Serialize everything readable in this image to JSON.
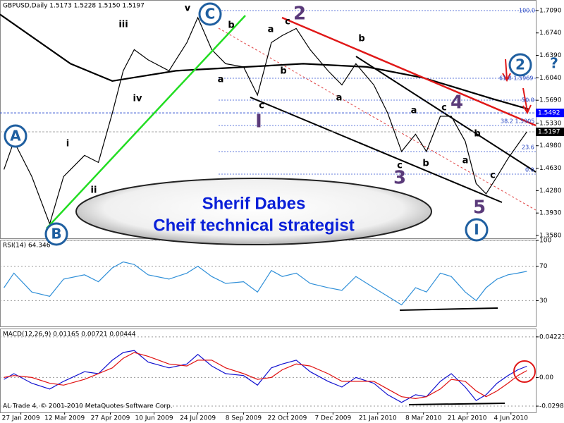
{
  "chart_data": [
    {
      "type": "line",
      "title": "GBPUSD,Daily  1.5173 1.5228 1.5150 1.5197",
      "xlim": [
        "2009-01-06",
        "2010-06-29"
      ],
      "ylim": [
        1.3536,
        1.7232
      ],
      "yticks": [
        {
          "value": 1.709,
          "label": "1.7090"
        },
        {
          "value": 1.674,
          "label": "1.6740"
        },
        {
          "value": 1.639,
          "label": "1.6390"
        },
        {
          "value": 1.604,
          "label": "1.6040"
        },
        {
          "value": 1.569,
          "label": "1.5690"
        },
        {
          "value": 1.533,
          "label": "1.5330"
        },
        {
          "value": 1.498,
          "label": "1.4980"
        },
        {
          "value": 1.463,
          "label": "1.4630"
        },
        {
          "value": 1.428,
          "label": "1.4280"
        },
        {
          "value": 1.393,
          "label": "1.3930"
        },
        {
          "value": 1.358,
          "label": "1.3580"
        }
      ],
      "series": [
        {
          "color": "#000000",
          "x": [
            "2009-01-10",
            "2009-01-20",
            "2009-02-07",
            "2009-02-25",
            "2009-03-11",
            "2009-04-01",
            "2009-04-15",
            "2009-04-29",
            "2009-05-10",
            "2009-05-21",
            "2009-06-04",
            "2009-06-25",
            "2009-07-13",
            "2009-07-24",
            "2009-08-07",
            "2009-08-21",
            "2009-09-08",
            "2009-09-22",
            "2009-10-06",
            "2009-10-17",
            "2009-10-31",
            "2009-11-14",
            "2009-12-02",
            "2009-12-16",
            "2009-12-30",
            "2010-01-17",
            "2010-01-31",
            "2010-02-14",
            "2010-02-28",
            "2010-03-11",
            "2010-03-25",
            "2010-04-05",
            "2010-04-19",
            "2010-04-30",
            "2010-05-10",
            "2010-05-21",
            "2010-06-01",
            "2010-06-11",
            "2010-06-20"
          ],
          "values": [
            1.461,
            1.505,
            1.45,
            1.376,
            1.45,
            1.483,
            1.472,
            1.549,
            1.615,
            1.648,
            1.632,
            1.615,
            1.659,
            1.698,
            1.648,
            1.626,
            1.621,
            1.577,
            1.659,
            1.67,
            1.681,
            1.648,
            1.615,
            1.593,
            1.626,
            1.593,
            1.549,
            1.489,
            1.516,
            1.489,
            1.544,
            1.544,
            1.505,
            1.439,
            1.423,
            1.45,
            1.478,
            1.5,
            1.5197
          ]
        },
        {
          "color": "#000000",
          "x": [
            "2009-01-06",
            "2009-03-18",
            "2009-04-29",
            "2009-07-02",
            "2009-09-11",
            "2009-11-07",
            "2010-01-10",
            "2010-03-08",
            "2010-05-17",
            "2010-06-22"
          ],
          "values": [
            1.703,
            1.626,
            1.599,
            1.615,
            1.621,
            1.626,
            1.621,
            1.604,
            1.571,
            1.555
          ]
        }
      ],
      "price_tags": [
        1.5492,
        1.5197
      ],
      "fib_labels": [
        "100.0",
        "61.8  1.5969",
        "50.0",
        "38.2  1.5905",
        "23.6",
        "0.0"
      ],
      "annotations": [
        "A",
        "B",
        "C",
        "i",
        "ii",
        "iii",
        "iv",
        "v",
        "b",
        "a",
        "a",
        "c",
        "b",
        "c",
        "b",
        "a",
        "a",
        "c",
        "b",
        "b",
        "c",
        "a",
        "c",
        "2",
        "3",
        "4",
        "5",
        "I",
        "I",
        "2",
        "?",
        "Sherif Dabes",
        "Cheif technical strategist"
      ]
    },
    {
      "type": "line",
      "title": "RSI(14) 64.346",
      "xlim": [
        "2009-01-06",
        "2010-06-29"
      ],
      "ylim": [
        0,
        100
      ],
      "yticks": [
        100,
        70,
        30
      ],
      "series": [
        {
          "color": "#2f8fd8",
          "x": [
            "2009-01-10",
            "2009-01-20",
            "2009-02-07",
            "2009-02-25",
            "2009-03-11",
            "2009-04-01",
            "2009-04-15",
            "2009-04-29",
            "2009-05-10",
            "2009-05-21",
            "2009-06-04",
            "2009-06-25",
            "2009-07-13",
            "2009-07-24",
            "2009-08-07",
            "2009-08-21",
            "2009-09-08",
            "2009-09-22",
            "2009-10-06",
            "2009-10-17",
            "2009-10-31",
            "2009-11-14",
            "2009-12-02",
            "2009-12-16",
            "2009-12-30",
            "2010-01-17",
            "2010-01-31",
            "2010-02-14",
            "2010-02-28",
            "2010-03-11",
            "2010-03-25",
            "2010-04-05",
            "2010-04-19",
            "2010-04-30",
            "2010-05-10",
            "2010-05-21",
            "2010-06-01",
            "2010-06-11",
            "2010-06-20"
          ],
          "values": [
            45,
            62,
            40,
            35,
            55,
            60,
            52,
            68,
            75,
            72,
            60,
            55,
            62,
            70,
            58,
            50,
            52,
            40,
            65,
            58,
            62,
            50,
            45,
            42,
            58,
            45,
            35,
            25,
            45,
            40,
            62,
            58,
            40,
            30,
            45,
            55,
            60,
            62,
            64
          ]
        }
      ]
    },
    {
      "type": "line",
      "title": "MACD(12,26,9) 0.01165 0.00721 0.00444",
      "copyright": "AL Trade 4, © 2001-2010 MetaQuotes Software Corp.",
      "xlim": [
        "2009-01-06",
        "2010-06-29"
      ],
      "ylim": [
        -0.0364,
        0.0502
      ],
      "yticks": [
        0.04223,
        {
          "value": 0,
          "label": "0.00"
        },
        -0.02984
      ],
      "xticks": [
        {
          "value": "2009-01-27",
          "label": "27 Jan 2009"
        },
        {
          "value": "2009-03-12",
          "label": "12 Mar 2009"
        },
        {
          "value": "2009-04-27",
          "label": "27 Apr 2009"
        },
        {
          "value": "2009-06-10",
          "label": "10 Jun 2009"
        },
        {
          "value": "2009-07-24",
          "label": "24 Jul 2009"
        },
        {
          "value": "2009-09-08",
          "label": "8 Sep 2009"
        },
        {
          "value": "2009-10-22",
          "label": "22 Oct 2009"
        },
        {
          "value": "2009-12-07",
          "label": "7 Dec 2009"
        },
        {
          "value": "2010-01-21",
          "label": "21 Jan 2010"
        },
        {
          "value": "2010-03-08",
          "label": "8 Mar 2010"
        },
        {
          "value": "2010-04-21",
          "label": "21 Apr 2010"
        },
        {
          "value": "2010-06-04",
          "label": "4 Jun 2010"
        }
      ],
      "series": [
        {
          "color": "#1010d0",
          "x": [
            "2009-01-10",
            "2009-01-20",
            "2009-02-07",
            "2009-02-25",
            "2009-03-11",
            "2009-04-01",
            "2009-04-15",
            "2009-04-29",
            "2009-05-10",
            "2009-05-21",
            "2009-06-04",
            "2009-06-25",
            "2009-07-13",
            "2009-07-24",
            "2009-08-07",
            "2009-08-21",
            "2009-09-08",
            "2009-09-22",
            "2009-10-06",
            "2009-10-17",
            "2009-10-31",
            "2009-11-14",
            "2009-12-02",
            "2009-12-16",
            "2009-12-30",
            "2010-01-17",
            "2010-01-31",
            "2010-02-14",
            "2010-02-28",
            "2010-03-11",
            "2010-03-25",
            "2010-04-05",
            "2010-04-19",
            "2010-04-30",
            "2010-05-10",
            "2010-05-21",
            "2010-06-01",
            "2010-06-11",
            "2010-06-20"
          ],
          "values": [
            -0.002,
            0.004,
            -0.006,
            -0.012,
            -0.004,
            0.006,
            0.004,
            0.018,
            0.026,
            0.028,
            0.016,
            0.01,
            0.014,
            0.024,
            0.012,
            0.004,
            0.002,
            -0.008,
            0.01,
            0.014,
            0.018,
            0.006,
            -0.004,
            -0.01,
            0,
            -0.006,
            -0.018,
            -0.026,
            -0.018,
            -0.02,
            -0.004,
            0.004,
            -0.01,
            -0.024,
            -0.018,
            -0.006,
            0.002,
            0.008,
            0.0117
          ]
        },
        {
          "color": "#e01010",
          "x": [
            "2009-01-10",
            "2009-01-20",
            "2009-02-07",
            "2009-02-25",
            "2009-03-11",
            "2009-04-01",
            "2009-04-15",
            "2009-04-29",
            "2009-05-10",
            "2009-05-21",
            "2009-06-04",
            "2009-06-25",
            "2009-07-13",
            "2009-07-24",
            "2009-08-07",
            "2009-08-21",
            "2009-09-08",
            "2009-09-22",
            "2009-10-06",
            "2009-10-17",
            "2009-10-31",
            "2009-11-14",
            "2009-12-02",
            "2009-12-16",
            "2009-12-30",
            "2010-01-17",
            "2010-01-31",
            "2010-02-14",
            "2010-02-28",
            "2010-03-11",
            "2010-03-25",
            "2010-04-05",
            "2010-04-19",
            "2010-04-30",
            "2010-05-10",
            "2010-05-21",
            "2010-06-01",
            "2010-06-11",
            "2010-06-20"
          ],
          "values": [
            0,
            0.002,
            0,
            -0.006,
            -0.008,
            -0.002,
            0.004,
            0.01,
            0.02,
            0.026,
            0.022,
            0.014,
            0.012,
            0.018,
            0.018,
            0.01,
            0.004,
            -0.002,
            0,
            0.008,
            0.014,
            0.012,
            0.004,
            -0.004,
            -0.004,
            -0.004,
            -0.012,
            -0.02,
            -0.022,
            -0.02,
            -0.012,
            -0.002,
            -0.004,
            -0.014,
            -0.02,
            -0.014,
            -0.006,
            0.002,
            0.0072
          ]
        }
      ]
    }
  ]
}
